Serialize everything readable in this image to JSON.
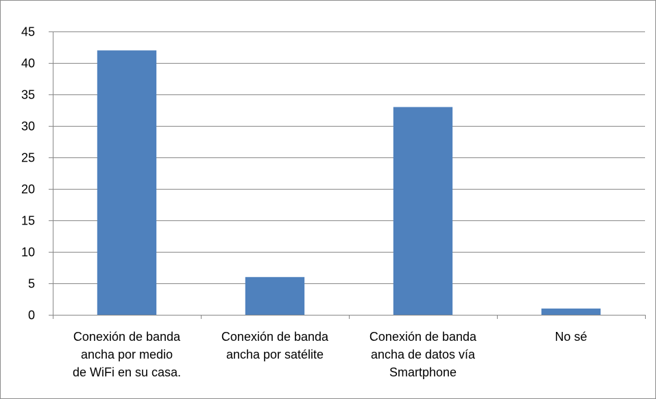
{
  "chart_data": {
    "type": "bar",
    "categories": [
      [
        "Conexión de banda",
        "ancha por medio",
        "de WiFi en su casa."
      ],
      [
        "Conexión de banda",
        "ancha por satélite"
      ],
      [
        "Conexión de banda",
        "ancha de datos vía",
        "Smartphone"
      ],
      [
        "No sé"
      ]
    ],
    "values": [
      42,
      6,
      33,
      1
    ],
    "ylim": [
      0,
      45
    ],
    "yticks": [
      0,
      5,
      10,
      15,
      20,
      25,
      30,
      35,
      40,
      45
    ],
    "grid": true,
    "legend": "none",
    "colors": {
      "bar": "#4f81bd",
      "grid": "#878787",
      "axis": "#878787"
    }
  }
}
